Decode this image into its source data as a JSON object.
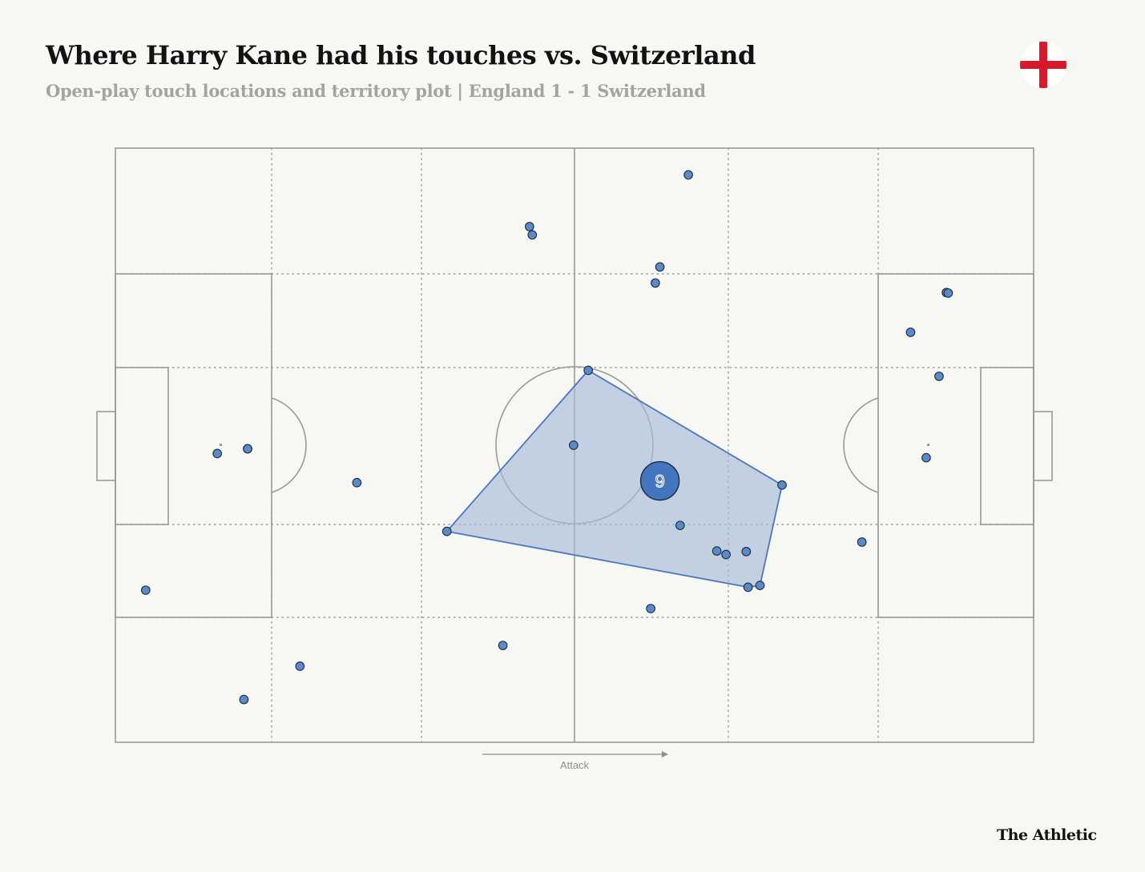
{
  "header": {
    "title": "Where Harry Kane had his touches vs. Switzerland",
    "subtitle": "Open-play touch locations and territory plot |  England 1 - 1 Switzerland"
  },
  "flag": {
    "icon": "england-flag-icon",
    "cross_color": "#d7192c",
    "field_color": "#ffffff"
  },
  "brand": {
    "label": "The Athletic"
  },
  "colors": {
    "background": "#f7f7f3",
    "pitch_lines": "#9a9a9a",
    "grid_lines": "#9a9a9a",
    "touch_fill": "#5b8ac8",
    "touch_stroke": "#1f2a3d",
    "hull_fill": "#a8bcd7",
    "hull_stroke": "#4a78bf",
    "avg_fill": "#4476bf",
    "avg_label": "#ffffff"
  },
  "chart_data": {
    "type": "scatter",
    "description_units": "pitch coordinates 0-100 (x = attacking direction left to right, y = top to bottom)",
    "xlim": [
      0,
      100
    ],
    "ylim": [
      0,
      100
    ],
    "grid": true,
    "direction_label": "Attack",
    "touches": [
      {
        "x": 62.4,
        "y": 4.5
      },
      {
        "x": 45.1,
        "y": 13.2
      },
      {
        "x": 45.4,
        "y": 14.6
      },
      {
        "x": 59.3,
        "y": 20.0
      },
      {
        "x": 58.8,
        "y": 22.7
      },
      {
        "x": 90.5,
        "y": 24.3
      },
      {
        "x": 90.7,
        "y": 24.4
      },
      {
        "x": 86.6,
        "y": 31.0
      },
      {
        "x": 89.7,
        "y": 38.4
      },
      {
        "x": 51.5,
        "y": 37.4
      },
      {
        "x": 49.9,
        "y": 50.0
      },
      {
        "x": 14.4,
        "y": 50.6
      },
      {
        "x": 14.4,
        "y": 50.6
      },
      {
        "x": 11.1,
        "y": 51.4
      },
      {
        "x": 88.3,
        "y": 52.1
      },
      {
        "x": 26.3,
        "y": 56.3
      },
      {
        "x": 72.6,
        "y": 56.7
      },
      {
        "x": 36.1,
        "y": 64.5
      },
      {
        "x": 61.5,
        "y": 63.5
      },
      {
        "x": 81.3,
        "y": 66.3
      },
      {
        "x": 65.5,
        "y": 67.8
      },
      {
        "x": 66.5,
        "y": 68.4
      },
      {
        "x": 68.7,
        "y": 67.9
      },
      {
        "x": 68.9,
        "y": 73.9
      },
      {
        "x": 70.2,
        "y": 73.6
      },
      {
        "x": 3.3,
        "y": 74.4
      },
      {
        "x": 58.3,
        "y": 77.5
      },
      {
        "x": 42.2,
        "y": 83.7
      },
      {
        "x": 20.1,
        "y": 87.2
      },
      {
        "x": 14.0,
        "y": 92.8
      }
    ],
    "hull": [
      {
        "x": 51.5,
        "y": 37.4
      },
      {
        "x": 72.6,
        "y": 56.7
      },
      {
        "x": 70.2,
        "y": 73.6
      },
      {
        "x": 68.9,
        "y": 73.9
      },
      {
        "x": 36.1,
        "y": 64.5
      }
    ],
    "average_position": {
      "x": 59.3,
      "y": 56.0,
      "label": "9"
    }
  }
}
